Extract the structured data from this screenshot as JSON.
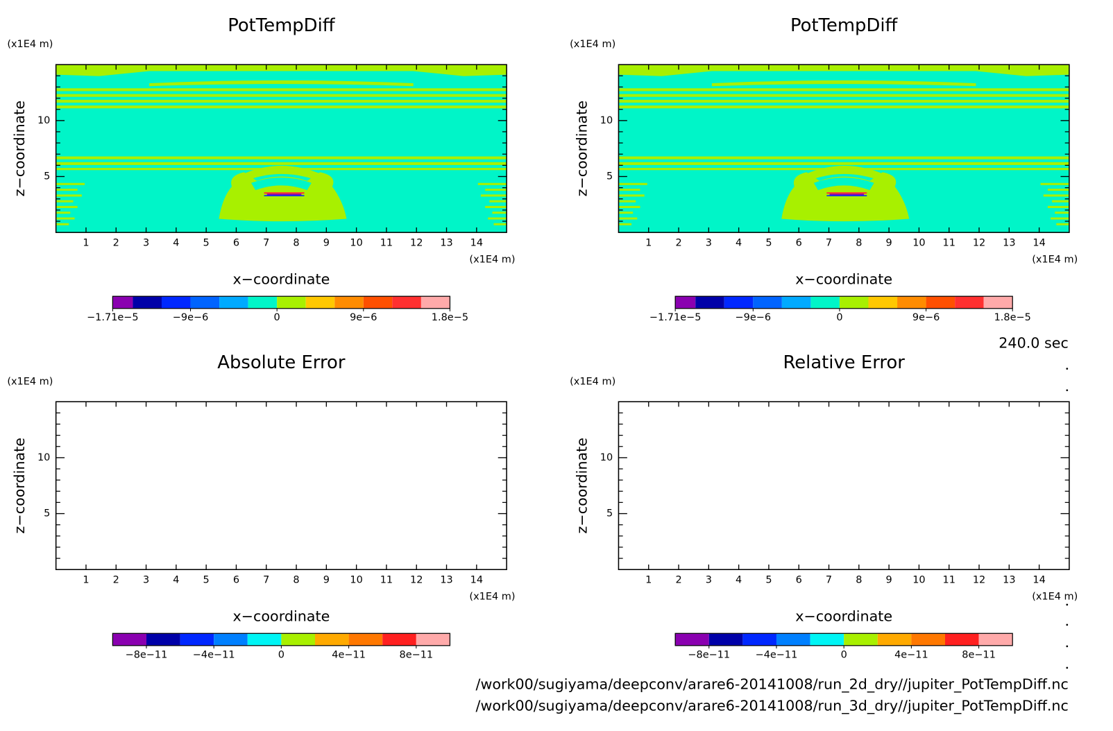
{
  "chart_data": [
    {
      "type": "contour",
      "title": "PotTempDiff",
      "xlabel": "x−coordinate",
      "ylabel": "z−coordinate",
      "xunit": "(x1E4 m)",
      "yunit": "(x1E4 m)",
      "xlim": [
        0,
        15
      ],
      "ylim": [
        0,
        15
      ],
      "xticks": [
        1,
        2,
        3,
        4,
        5,
        6,
        7,
        8,
        9,
        10,
        11,
        12,
        13,
        14
      ],
      "yticks": [
        5,
        10
      ],
      "yminorticks": [
        1,
        2,
        3,
        4,
        6,
        7,
        8,
        9,
        11,
        12,
        13,
        14
      ],
      "colorbar": {
        "levels": [
          -1.71e-05,
          -1.5e-05,
          -1.2e-05,
          -9e-06,
          -6e-06,
          -3e-06,
          0,
          3e-06,
          6e-06,
          9e-06,
          1.2e-05,
          1.5e-05,
          1.8e-05
        ],
        "colors": [
          "#8a00b0",
          "#0000a8",
          "#0028ff",
          "#0064ff",
          "#00aaff",
          "#00f5c8",
          "#a8f000",
          "#ffc800",
          "#ff8c00",
          "#ff5000",
          "#ff3030",
          "#ffaaaa"
        ],
        "ticks": [
          {
            "value": -1.71e-05,
            "label": "−1.71e−5"
          },
          {
            "value": -9e-06,
            "label": "−9e−6"
          },
          0,
          {
            "value": 9e-06,
            "label": "9e−6"
          },
          {
            "value": 1.8e-05,
            "label": "1.8e−5"
          }
        ]
      }
    },
    {
      "type": "contour",
      "title": "PotTempDiff",
      "xlabel": "x−coordinate",
      "ylabel": "z−coordinate",
      "xunit": "(x1E4 m)",
      "yunit": "(x1E4 m)",
      "xlim": [
        0,
        15
      ],
      "ylim": [
        0,
        15
      ],
      "xticks": [
        1,
        2,
        3,
        4,
        5,
        6,
        7,
        8,
        9,
        10,
        11,
        12,
        13,
        14
      ],
      "yticks": [
        5,
        10
      ],
      "yminorticks": [
        1,
        2,
        3,
        4,
        6,
        7,
        8,
        9,
        11,
        12,
        13,
        14
      ],
      "colorbar": {
        "levels": [
          -1.71e-05,
          -1.5e-05,
          -1.2e-05,
          -9e-06,
          -6e-06,
          -3e-06,
          0,
          3e-06,
          6e-06,
          9e-06,
          1.2e-05,
          1.5e-05,
          1.8e-05
        ],
        "colors": [
          "#8a00b0",
          "#0000a8",
          "#0028ff",
          "#0064ff",
          "#00aaff",
          "#00f5c8",
          "#a8f000",
          "#ffc800",
          "#ff8c00",
          "#ff5000",
          "#ff3030",
          "#ffaaaa"
        ],
        "ticks": [
          {
            "value": -1.71e-05,
            "label": "−1.71e−5"
          },
          {
            "value": -9e-06,
            "label": "−9e−6"
          },
          0,
          {
            "value": 9e-06,
            "label": "9e−6"
          },
          {
            "value": 1.8e-05,
            "label": "1.8e−5"
          }
        ]
      }
    },
    {
      "type": "contour",
      "title": "Absolute Error",
      "xlabel": "x−coordinate",
      "ylabel": "z−coordinate",
      "xunit": "(x1E4 m)",
      "yunit": "(x1E4 m)",
      "xlim": [
        0,
        15
      ],
      "ylim": [
        0,
        15
      ],
      "xticks": [
        1,
        2,
        3,
        4,
        5,
        6,
        7,
        8,
        9,
        10,
        11,
        12,
        13,
        14
      ],
      "yticks": [
        5,
        10
      ],
      "yminorticks": [
        1,
        2,
        3,
        4,
        6,
        7,
        8,
        9,
        11,
        12,
        13,
        14
      ],
      "colorbar": {
        "levels": [
          -1e-10,
          -8e-11,
          -6e-11,
          -4e-11,
          -2e-11,
          0,
          2e-11,
          4e-11,
          6e-11,
          8e-11,
          1e-10
        ],
        "colors": [
          "#8a00b0",
          "#0000a8",
          "#0028ff",
          "#0080ff",
          "#00f5f5",
          "#a8f000",
          "#ffaa00",
          "#ff7800",
          "#ff2020",
          "#ffaaaa"
        ],
        "ticks": [
          {
            "value": -8e-11,
            "label": "−8e−11"
          },
          {
            "value": -4e-11,
            "label": "−4e−11"
          },
          0,
          {
            "value": 4e-11,
            "label": "4e−11"
          },
          {
            "value": 8e-11,
            "label": "8e−11"
          }
        ]
      }
    },
    {
      "type": "contour",
      "title": "Relative Error",
      "xlabel": "x−coordinate",
      "ylabel": "z−coordinate",
      "xunit": "(x1E4 m)",
      "yunit": "(x1E4 m)",
      "xlim": [
        0,
        15
      ],
      "ylim": [
        0,
        15
      ],
      "xticks": [
        1,
        2,
        3,
        4,
        5,
        6,
        7,
        8,
        9,
        10,
        11,
        12,
        13,
        14
      ],
      "yticks": [
        5,
        10
      ],
      "yminorticks": [
        1,
        2,
        3,
        4,
        6,
        7,
        8,
        9,
        11,
        12,
        13,
        14
      ],
      "colorbar": {
        "levels": [
          -1e-10,
          -8e-11,
          -6e-11,
          -4e-11,
          -2e-11,
          0,
          2e-11,
          4e-11,
          6e-11,
          8e-11,
          1e-10
        ],
        "colors": [
          "#8a00b0",
          "#0000a8",
          "#0028ff",
          "#0080ff",
          "#00f5f5",
          "#a8f000",
          "#ffaa00",
          "#ff7800",
          "#ff2020",
          "#ffaaaa"
        ],
        "ticks": [
          {
            "value": -8e-11,
            "label": "−8e−11"
          },
          {
            "value": -4e-11,
            "label": "−4e−11"
          },
          0,
          {
            "value": 4e-11,
            "label": "4e−11"
          },
          {
            "value": 8e-11,
            "label": "8e−11"
          }
        ]
      }
    }
  ],
  "footer": {
    "time": "240.0 sec",
    "files": [
      "/work00/sugiyama/deepconv/arare6-20141008/run_2d_dry//jupiter_PotTempDiff.nc",
      "/work00/sugiyama/deepconv/arare6-20141008/run_3d_dry//jupiter_PotTempDiff.nc"
    ]
  }
}
